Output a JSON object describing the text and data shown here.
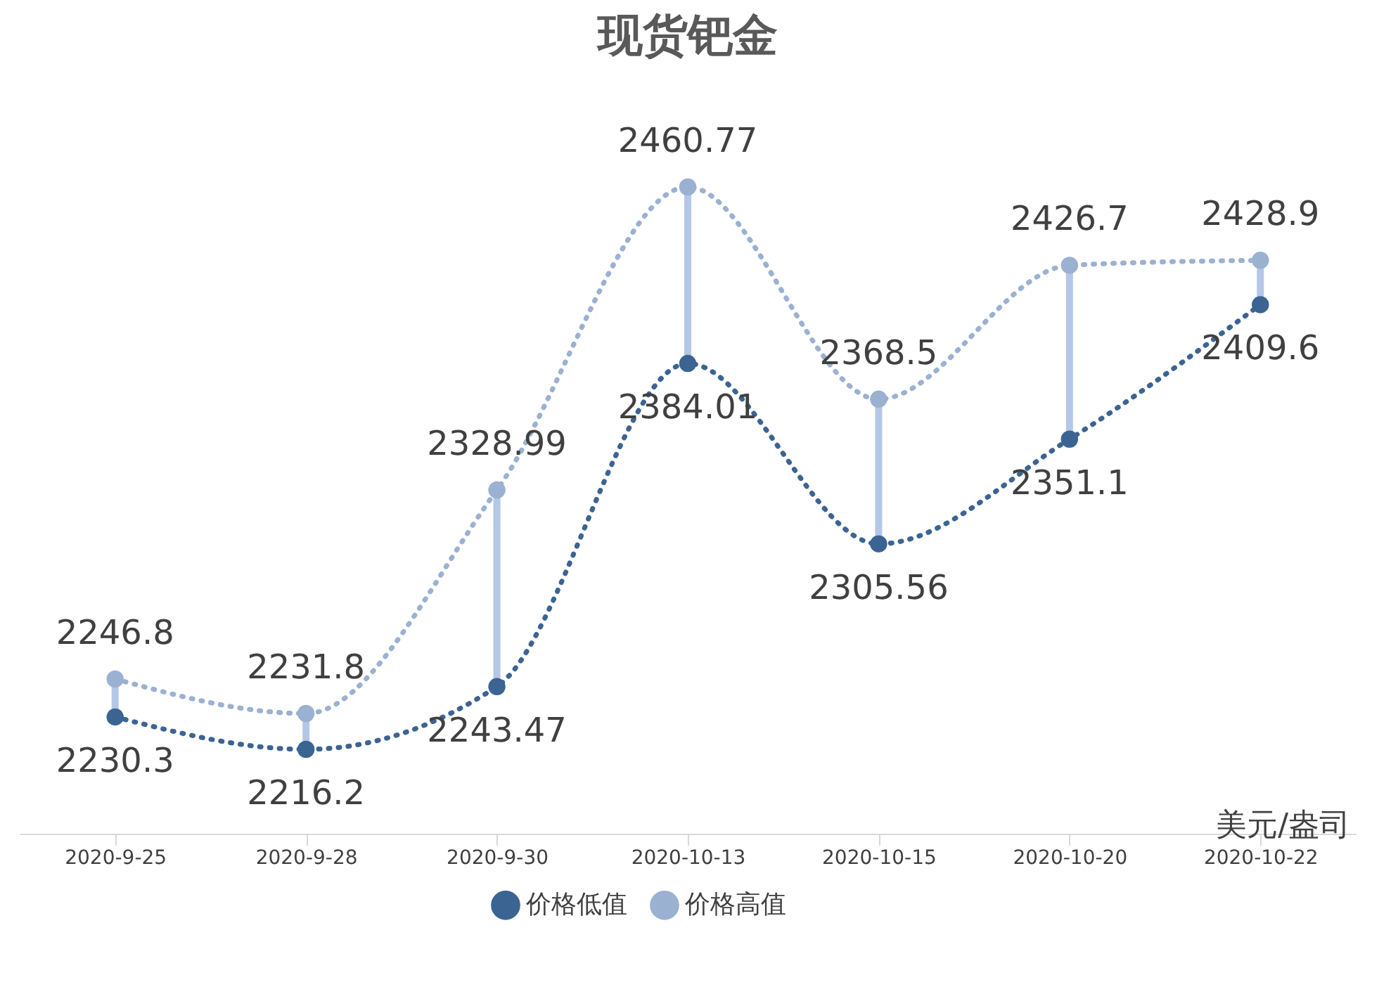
{
  "chart_data": {
    "type": "line",
    "title": "现货钯金",
    "categories": [
      "2020-9-25",
      "2020-9-28",
      "2020-9-30",
      "2020-10-13",
      "2020-10-15",
      "2020-10-20",
      "2020-10-22"
    ],
    "series": [
      {
        "name": "价格低值",
        "color": "#3b6493",
        "values": [
          2230.3,
          2216.2,
          2243.47,
          2384.01,
          2305.56,
          2351.1,
          2409.6
        ]
      },
      {
        "name": "价格高值",
        "color": "#9bb1d2",
        "values": [
          2246.8,
          2231.8,
          2328.99,
          2460.77,
          2368.5,
          2426.7,
          2428.9
        ]
      }
    ],
    "annotations": [
      "美元/盎司"
    ],
    "data_labels": true,
    "legend": "bottom",
    "grid": false,
    "marker": "circle",
    "line_style": "dotted",
    "tick_labels": "x"
  }
}
